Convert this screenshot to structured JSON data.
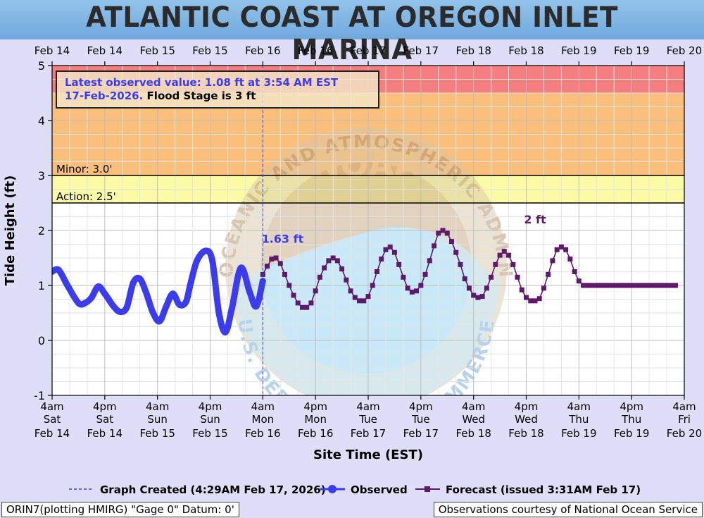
{
  "header": {
    "title": "ATLANTIC COAST AT OREGON INLET MARINA"
  },
  "chart_data": {
    "type": "line",
    "title": "ATLANTIC COAST AT OREGON INLET MARINA",
    "xlabel": "Site Time (EST)",
    "ylabel": "Tide Height (ft)",
    "ylim": [
      -1,
      5
    ],
    "yticks": [
      -1,
      0,
      1,
      2,
      3,
      4,
      5
    ],
    "xrange_hours": [
      0,
      144
    ],
    "grid": true,
    "top_axis_labels": [
      "Feb 14",
      "Feb 14",
      "Feb 15",
      "Feb 15",
      "Feb 16",
      "Feb 16",
      "Feb 17",
      "Feb 17",
      "Feb 18",
      "Feb 18",
      "Feb 19",
      "Feb 19",
      "Feb 20"
    ],
    "bottom_ticks": [
      {
        "time": "4am",
        "day": "Sat",
        "date": "Feb 14"
      },
      {
        "time": "4pm",
        "day": "Sat",
        "date": "Feb 14"
      },
      {
        "time": "4am",
        "day": "Sun",
        "date": "Feb 15"
      },
      {
        "time": "4pm",
        "day": "Sun",
        "date": "Feb 15"
      },
      {
        "time": "4am",
        "day": "Mon",
        "date": "Feb 16"
      },
      {
        "time": "4pm",
        "day": "Mon",
        "date": "Feb 16"
      },
      {
        "time": "4am",
        "day": "Tue",
        "date": "Feb 17"
      },
      {
        "time": "4pm",
        "day": "Tue",
        "date": "Feb 17"
      },
      {
        "time": "4am",
        "day": "Wed",
        "date": "Feb 18"
      },
      {
        "time": "4pm",
        "day": "Wed",
        "date": "Feb 18"
      },
      {
        "time": "4am",
        "day": "Thu",
        "date": "Feb 19"
      },
      {
        "time": "4pm",
        "day": "Thu",
        "date": "Feb 19"
      },
      {
        "time": "4am",
        "day": "Fri",
        "date": "Feb 20"
      }
    ],
    "flood_bands": [
      {
        "name": "major",
        "from": 4.5,
        "to": 5,
        "color": "#f57f7f"
      },
      {
        "name": "moderate",
        "from": 3,
        "to": 4.5,
        "color": "#f9bf7b"
      },
      {
        "name": "minor",
        "from": 2.5,
        "to": 3,
        "color": "#fbfba5"
      }
    ],
    "threshold_lines": [
      {
        "label": "Minor: 3.0'",
        "value": 3.0
      },
      {
        "label": "Action: 2.5'",
        "value": 2.5
      }
    ],
    "annotation_box": {
      "line1": "Latest observed value: 1.08 ft at 3:54 AM EST",
      "line2_blue": "17-Feb-2026.",
      "line2_black": " Flood Stage is 3 ft"
    },
    "peak_labels": [
      {
        "text": "1.63 ft",
        "x": 52.5,
        "y": 1.7,
        "series": "Observed"
      },
      {
        "text": "2 ft",
        "x": 110,
        "y": 2.05,
        "series": "Forecast"
      }
    ],
    "graph_created_x": 48,
    "series": [
      {
        "name": "Observed",
        "color": "#3b3bf0",
        "x": [
          0,
          1.5,
          3.5,
          6,
          7.5,
          9,
          10.5,
          12,
          14,
          15.5,
          17,
          18.5,
          20,
          21.5,
          23,
          24.5,
          26,
          27.5,
          29,
          30.5,
          31.5,
          33,
          35,
          36.5,
          38,
          39.5,
          41,
          43,
          45,
          46.5,
          48
        ],
        "y": [
          1.25,
          1.28,
          1.0,
          0.68,
          0.68,
          0.78,
          0.98,
          0.85,
          0.62,
          0.52,
          0.6,
          1.05,
          1.12,
          0.85,
          0.5,
          0.35,
          0.62,
          0.85,
          0.65,
          0.7,
          1.02,
          1.45,
          1.63,
          1.45,
          0.5,
          0.15,
          0.6,
          1.32,
          0.88,
          0.62,
          1.08
        ]
      },
      {
        "name": "Forecast",
        "color": "#5e1a6a",
        "x": [
          48,
          49,
          50,
          51,
          52,
          53,
          54,
          55,
          56,
          57,
          58,
          59,
          60,
          61,
          62,
          63,
          64,
          65,
          66,
          67,
          68,
          69,
          70,
          71,
          72,
          73,
          74,
          75,
          76,
          77,
          78,
          79,
          80,
          81,
          82,
          83,
          84,
          85,
          86,
          87,
          88,
          89,
          90,
          91,
          92,
          93,
          94,
          95,
          96,
          97,
          98,
          99,
          100,
          101,
          102,
          103,
          104,
          105,
          106,
          107,
          108,
          109,
          110,
          111,
          112,
          113,
          114,
          115,
          116,
          117,
          118,
          119,
          120,
          121,
          122,
          123,
          124,
          125,
          126,
          127,
          128,
          129,
          130,
          131,
          132,
          133,
          134,
          135,
          136,
          137,
          138,
          139,
          140,
          141,
          142
        ],
        "y": [
          1.2,
          1.35,
          1.48,
          1.5,
          1.4,
          1.2,
          1.0,
          0.82,
          0.68,
          0.6,
          0.6,
          0.68,
          0.9,
          1.15,
          1.32,
          1.45,
          1.5,
          1.45,
          1.3,
          1.1,
          0.9,
          0.78,
          0.72,
          0.72,
          0.8,
          1.0,
          1.25,
          1.48,
          1.65,
          1.7,
          1.6,
          1.38,
          1.15,
          0.95,
          0.88,
          0.9,
          1.0,
          1.2,
          1.45,
          1.72,
          1.95,
          2.0,
          1.95,
          1.8,
          1.6,
          1.38,
          1.12,
          0.95,
          0.82,
          0.78,
          0.8,
          0.95,
          1.15,
          1.38,
          1.55,
          1.62,
          1.55,
          1.38,
          1.15,
          0.92,
          0.78,
          0.72,
          0.72,
          0.76,
          0.95,
          1.2,
          1.45,
          1.65,
          1.7,
          1.65,
          1.48,
          1.25,
          1.08,
          1.0,
          1.0,
          1.0,
          1.0,
          1.0,
          1.0,
          1.0,
          1.0,
          1.0,
          1.0,
          1.0,
          1.0,
          1.0,
          1.0,
          1.0,
          1.0,
          1.0,
          1.0,
          1.0,
          1.0,
          1.0,
          1.0
        ]
      }
    ],
    "legend": {
      "position": "bottom",
      "items": [
        {
          "label": "Graph Created (4:29AM Feb 17, 2026)",
          "style": "dashed",
          "color": "#3b3bf0"
        },
        {
          "label": "Observed",
          "style": "solid-dot",
          "color": "#3b3bf0"
        },
        {
          "label": "Forecast (issued 3:31AM Feb 17)",
          "style": "solid-square",
          "color": "#5e1a6a"
        }
      ]
    },
    "watermark": {
      "top_text": "NATIONAL OCEANIC AND ATMOSPHERIC ADMINISTRATION",
      "bottom_text": "U.S. DEPARTMENT OF COMMERCE",
      "center_text": "NOAA"
    }
  },
  "footer": {
    "left": "ORIN7(plotting HMIRG) \"Gage 0\" Datum: 0'",
    "right": "Observations courtesy of National Ocean Service"
  }
}
